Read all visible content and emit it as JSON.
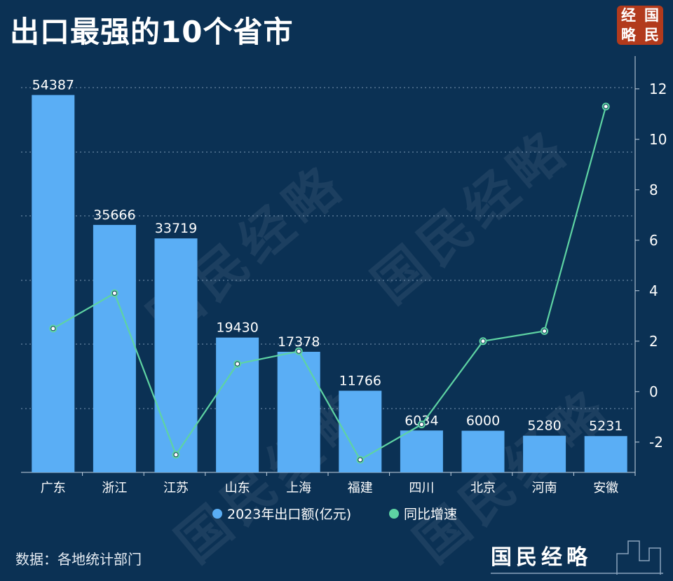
{
  "title": "出口最强的10个省市",
  "logo": {
    "chars": [
      "经",
      "国",
      "略",
      "民"
    ]
  },
  "source": "数据：各地统计部门",
  "brand": "国民经略",
  "watermark": "国民经略",
  "colors": {
    "background": "#0b3154",
    "bar": "#5aaef5",
    "line": "#5ed3a3",
    "logo_bg": "#b23a1c"
  },
  "chart_data": {
    "type": "bar",
    "categories": [
      "广东",
      "浙江",
      "江苏",
      "山东",
      "上海",
      "福建",
      "四川",
      "北京",
      "河南",
      "安徽"
    ],
    "series": [
      {
        "name": "2023年出口额(亿元)",
        "type": "bar",
        "axis": "left",
        "values": [
          54387,
          35666,
          33719,
          19430,
          17378,
          11766,
          6034,
          6000,
          5280,
          5231
        ]
      },
      {
        "name": "同比增速",
        "type": "line",
        "axis": "right",
        "values": [
          2.5,
          3.9,
          -2.5,
          1.1,
          1.6,
          -2.7,
          -1.3,
          2.0,
          2.4,
          11.3
        ]
      }
    ],
    "right_axis": {
      "ticks": [
        12,
        10,
        8,
        6,
        4,
        2,
        0,
        -2
      ],
      "ylim": [
        -3.2,
        13.3
      ]
    },
    "left_axis": {
      "ylim": [
        0,
        60000
      ]
    },
    "legend": {
      "position": "bottom-center",
      "items": [
        "2023年出口额(亿元)",
        "同比增速"
      ]
    },
    "grid": true
  }
}
